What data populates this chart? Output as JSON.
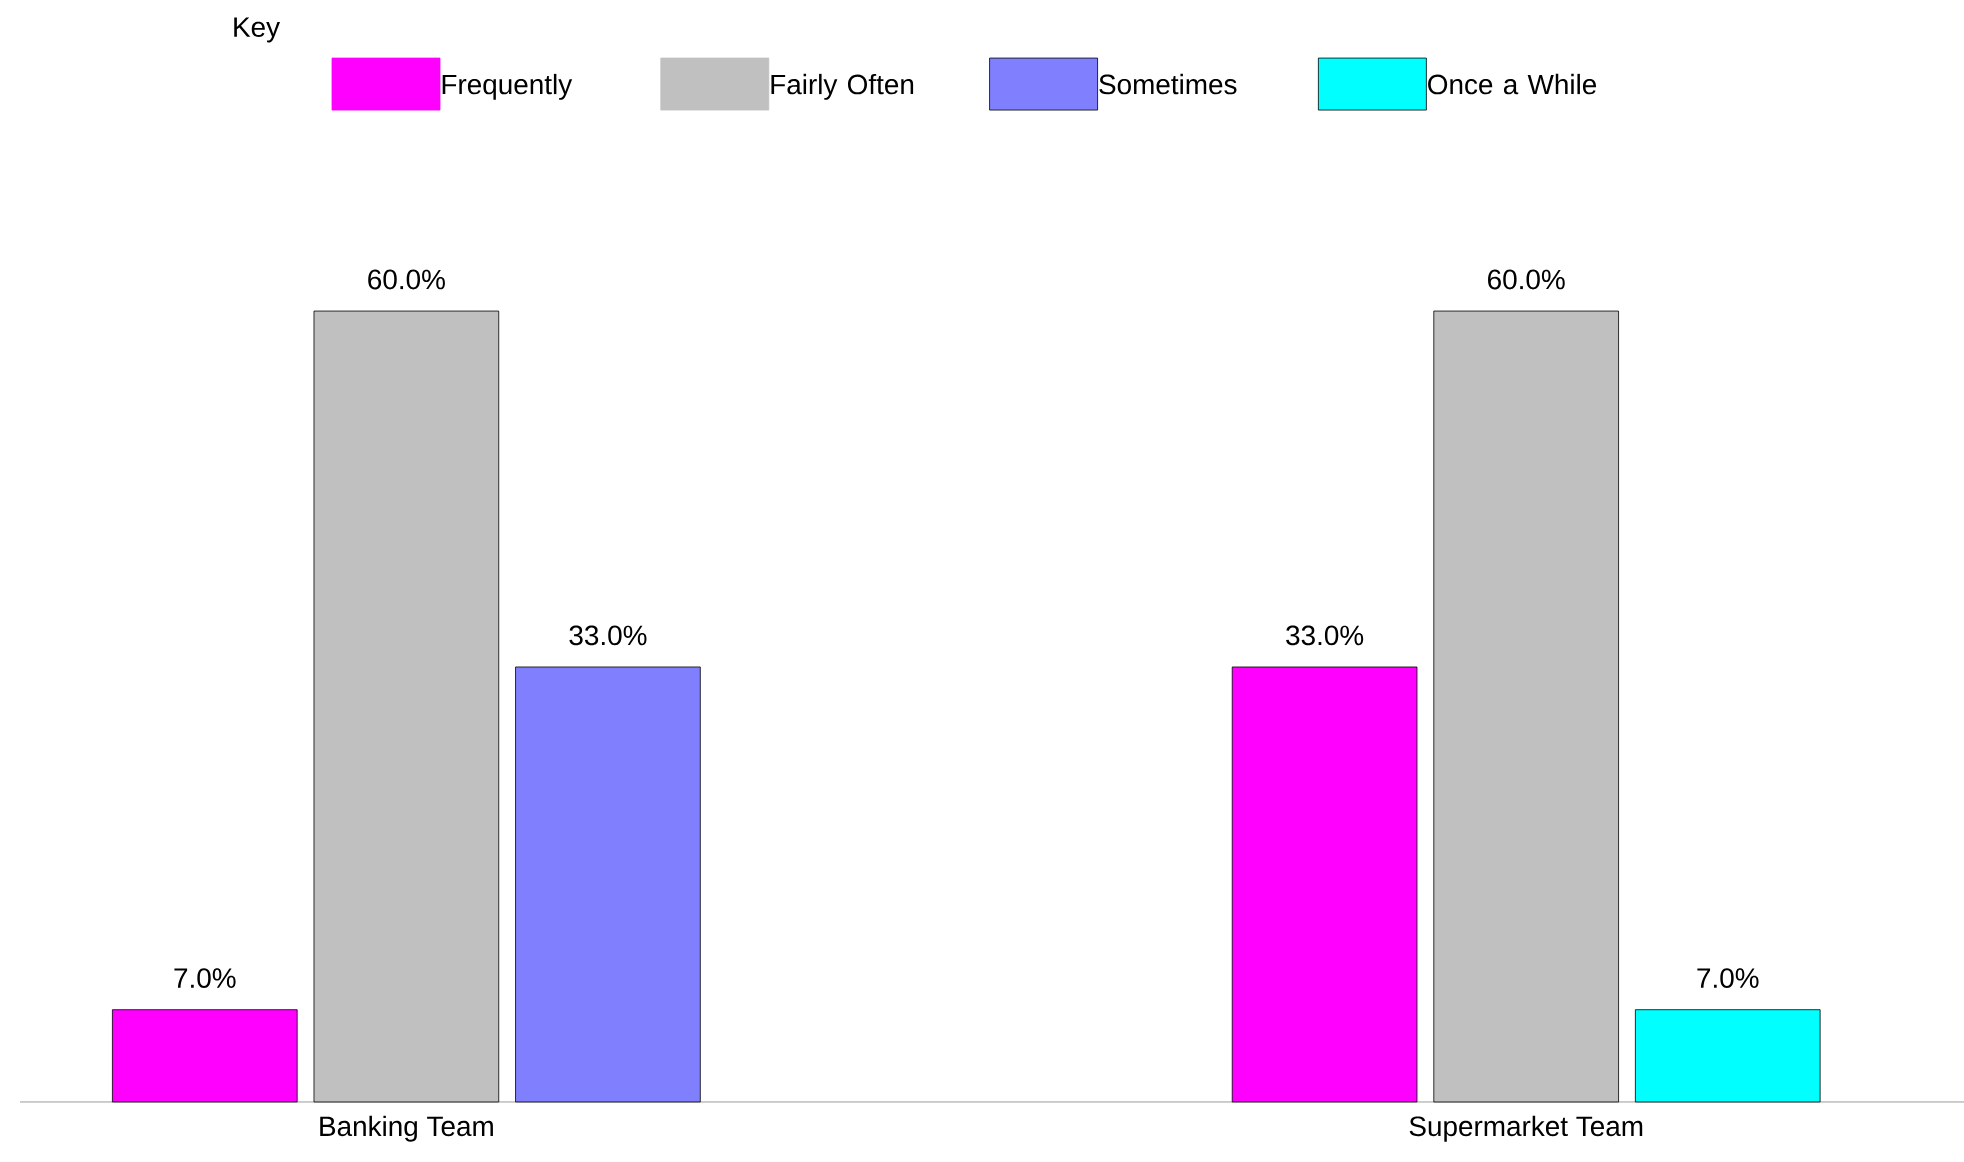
{
  "chart_data": {
    "type": "bar",
    "legend_title": "Key",
    "legend": "top",
    "categories": [
      "Banking Team",
      "Supermarket Team"
    ],
    "series": [
      {
        "name": "Frequently",
        "color": "#ff00ff",
        "values": [
          7,
          33
        ],
        "value_labels": [
          "7.0%",
          "33.0%"
        ]
      },
      {
        "name": "Fairly Often",
        "color": "#c0c0c0",
        "values": [
          60,
          60
        ],
        "value_labels": [
          "60.0%",
          "60.0%"
        ]
      },
      {
        "name": "Sometimes",
        "color": "#8080ff",
        "values": [
          33,
          null
        ],
        "value_labels": [
          "33.0%",
          null
        ]
      },
      {
        "name": "Once a While",
        "color": "#00ffff",
        "values": [
          null,
          7
        ],
        "value_labels": [
          null,
          "7.0%"
        ]
      }
    ]
  }
}
